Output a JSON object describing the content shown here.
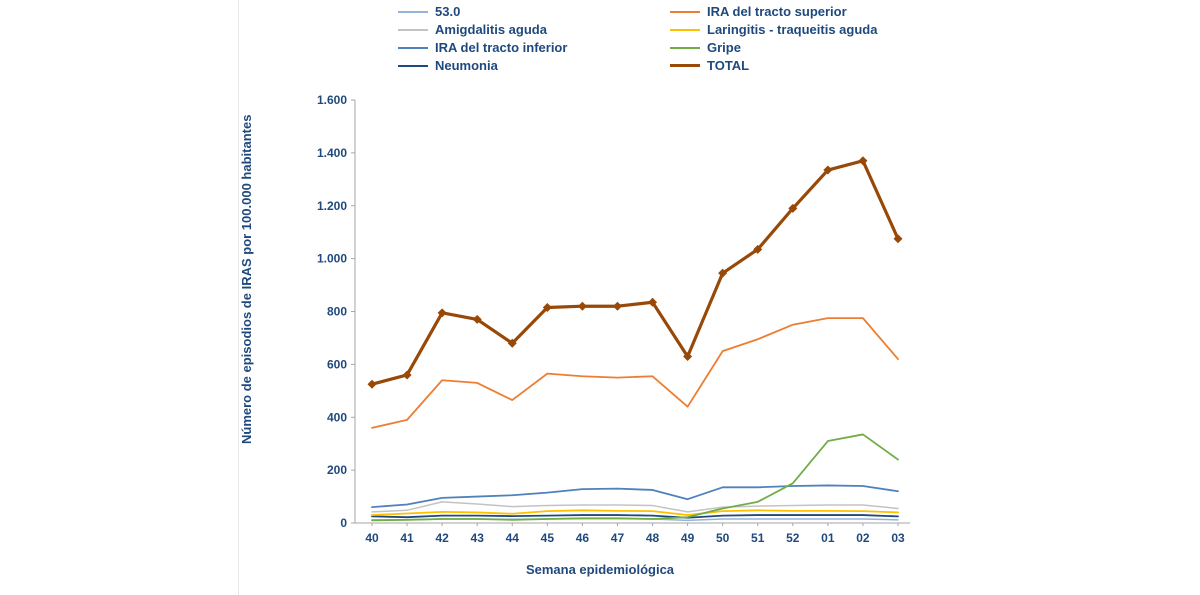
{
  "page": {
    "background": "#ffffff"
  },
  "chart_data": {
    "type": "line",
    "title": "",
    "xlabel": "Semana epidemiológica",
    "ylabel": "Número de episodios de IRAS por 100.000 habitantes",
    "ylim": [
      0,
      1600
    ],
    "grid": false,
    "legend_position": "top",
    "y_ticks": [
      0,
      200,
      400,
      600,
      800,
      1000,
      1200,
      1400,
      1600
    ],
    "y_tick_labels": [
      "0",
      "200",
      "400",
      "600",
      "800",
      "1.000",
      "1.200",
      "1.400",
      "1.600"
    ],
    "categories": [
      "40",
      "41",
      "42",
      "43",
      "44",
      "45",
      "46",
      "47",
      "48",
      "49",
      "50",
      "51",
      "52",
      "01",
      "02",
      "03"
    ],
    "axis_color": "#A6A6A6",
    "text_color": "#1F497D",
    "series": [
      {
        "name": "53.0",
        "color": "#95B3D7",
        "width": 1.5,
        "values": [
          12,
          12,
          15,
          15,
          14,
          15,
          16,
          16,
          15,
          10,
          15,
          15,
          15,
          15,
          15,
          12
        ]
      },
      {
        "name": "Amigdalitis aguda",
        "color": "#C3C3C3",
        "width": 1.5,
        "values": [
          42,
          48,
          80,
          72,
          62,
          66,
          68,
          68,
          66,
          42,
          60,
          64,
          66,
          68,
          68,
          55
        ]
      },
      {
        "name": "IRA del tracto inferior",
        "color": "#4F81BD",
        "width": 1.8,
        "values": [
          60,
          70,
          95,
          100,
          105,
          115,
          128,
          130,
          125,
          90,
          135,
          135,
          140,
          142,
          140,
          120
        ]
      },
      {
        "name": "Neumonia",
        "color": "#1F497D",
        "width": 1.8,
        "values": [
          25,
          22,
          28,
          28,
          26,
          28,
          30,
          30,
          28,
          20,
          28,
          30,
          30,
          30,
          30,
          25
        ]
      },
      {
        "name": "IRA del tracto superior",
        "color": "#ED7D31",
        "width": 1.8,
        "values": [
          360,
          390,
          540,
          530,
          465,
          565,
          555,
          550,
          555,
          440,
          650,
          695,
          750,
          775,
          775,
          620
        ]
      },
      {
        "name": "Laringitis - traqueitis aguda",
        "color": "#FFC000",
        "width": 1.8,
        "values": [
          30,
          36,
          42,
          40,
          35,
          45,
          48,
          46,
          45,
          30,
          45,
          48,
          46,
          46,
          45,
          40
        ]
      },
      {
        "name": "Gripe",
        "color": "#70AD47",
        "width": 1.8,
        "values": [
          10,
          12,
          15,
          15,
          12,
          15,
          18,
          18,
          15,
          22,
          55,
          80,
          150,
          310,
          335,
          240
        ]
      },
      {
        "name": "TOTAL",
        "color": "#984807",
        "width": 3.2,
        "marker": "diamond",
        "values": [
          525,
          560,
          795,
          770,
          680,
          815,
          820,
          820,
          835,
          630,
          945,
          1035,
          1190,
          1335,
          1370,
          1075
        ]
      }
    ]
  }
}
